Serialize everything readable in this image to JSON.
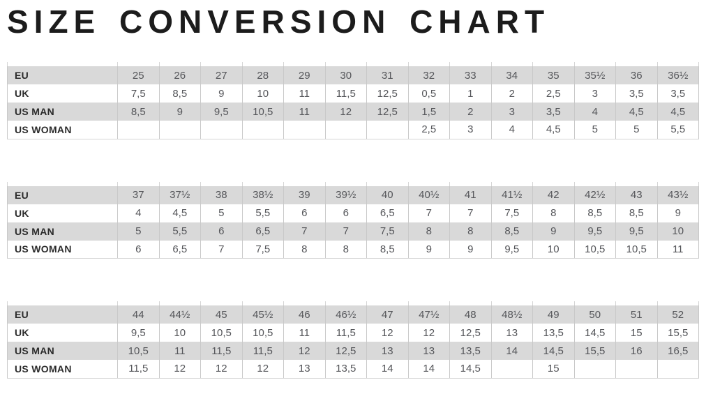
{
  "title": "SIZE CONVERSION CHART",
  "row_labels": [
    "EU",
    "UK",
    "US MAN",
    "US WOMAN"
  ],
  "tables": [
    {
      "name": "sizes-eu-25-to-36half",
      "rows": [
        {
          "label": "EU",
          "values": [
            "25",
            "26",
            "27",
            "28",
            "29",
            "30",
            "31",
            "32",
            "33",
            "34",
            "35",
            "35½",
            "36",
            "36½"
          ]
        },
        {
          "label": "UK",
          "values": [
            "7,5",
            "8,5",
            "9",
            "10",
            "11",
            "11,5",
            "12,5",
            "0,5",
            "1",
            "2",
            "2,5",
            "3",
            "3,5",
            "3,5"
          ]
        },
        {
          "label": "US MAN",
          "values": [
            "8,5",
            "9",
            "9,5",
            "10,5",
            "11",
            "12",
            "12,5",
            "1,5",
            "2",
            "3",
            "3,5",
            "4",
            "4,5",
            "4,5"
          ]
        },
        {
          "label": "US WOMAN",
          "values": [
            "",
            "",
            "",
            "",
            "",
            "",
            "",
            "2,5",
            "3",
            "4",
            "4,5",
            "5",
            "5",
            "5,5"
          ]
        }
      ]
    },
    {
      "name": "sizes-eu-37-to-43half",
      "rows": [
        {
          "label": "EU",
          "values": [
            "37",
            "37½",
            "38",
            "38½",
            "39",
            "39½",
            "40",
            "40½",
            "41",
            "41½",
            "42",
            "42½",
            "43",
            "43½"
          ]
        },
        {
          "label": "UK",
          "values": [
            "4",
            "4,5",
            "5",
            "5,5",
            "6",
            "6",
            "6,5",
            "7",
            "7",
            "7,5",
            "8",
            "8,5",
            "8,5",
            "9"
          ]
        },
        {
          "label": "US MAN",
          "values": [
            "5",
            "5,5",
            "6",
            "6,5",
            "7",
            "7",
            "7,5",
            "8",
            "8",
            "8,5",
            "9",
            "9,5",
            "9,5",
            "10"
          ]
        },
        {
          "label": "US WOMAN",
          "values": [
            "6",
            "6,5",
            "7",
            "7,5",
            "8",
            "8",
            "8,5",
            "9",
            "9",
            "9,5",
            "10",
            "10,5",
            "10,5",
            "11"
          ]
        }
      ]
    },
    {
      "name": "sizes-eu-44-to-52",
      "rows": [
        {
          "label": "EU",
          "values": [
            "44",
            "44½",
            "45",
            "45½",
            "46",
            "46½",
            "47",
            "47½",
            "48",
            "48½",
            "49",
            "50",
            "51",
            "52"
          ]
        },
        {
          "label": "UK",
          "values": [
            "9,5",
            "10",
            "10,5",
            "10,5",
            "11",
            "11,5",
            "12",
            "12",
            "12,5",
            "13",
            "13,5",
            "14,5",
            "15",
            "15,5"
          ]
        },
        {
          "label": "US MAN",
          "values": [
            "10,5",
            "11",
            "11,5",
            "11,5",
            "12",
            "12,5",
            "13",
            "13",
            "13,5",
            "14",
            "14,5",
            "15,5",
            "16",
            "16,5"
          ]
        },
        {
          "label": "US WOMAN",
          "values": [
            "11,5",
            "12",
            "12",
            "12",
            "13",
            "13,5",
            "14",
            "14",
            "14,5",
            "",
            "15",
            "",
            "",
            ""
          ]
        }
      ]
    }
  ],
  "colors": {
    "stripe_gray": "#d9d9d9",
    "stripe_white": "#ffffff",
    "separator": "#c9c9c9",
    "label_text": "#2b2b2b",
    "value_text": "#55565a",
    "title_text": "#1c1c1c"
  }
}
